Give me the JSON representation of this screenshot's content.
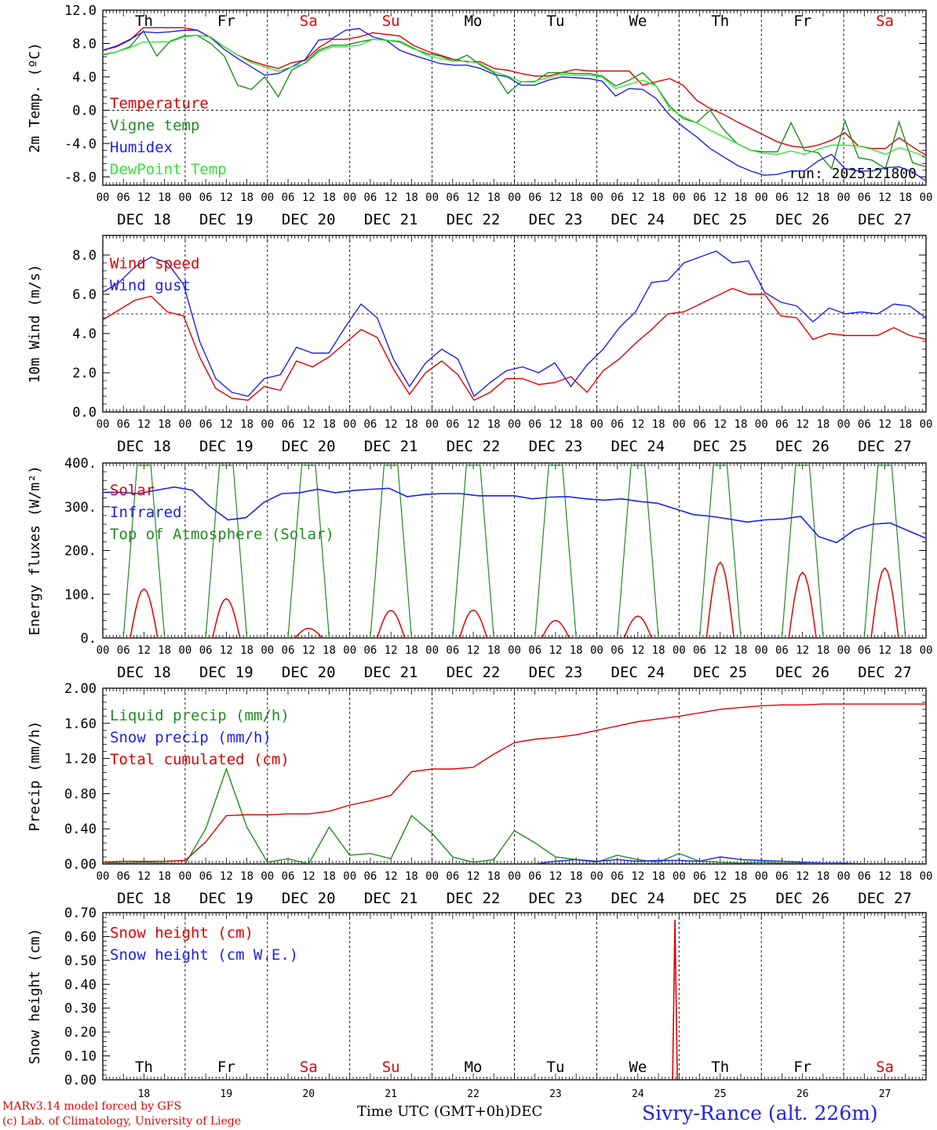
{
  "footer": {
    "model": "MARv3.14 model forced by GFS",
    "copyright": "(c) Lab. of Climatology, University of Liege",
    "time_label": "Time UTC (GMT+0h)",
    "month_label": "DEC",
    "station": "Sivry-Rance (alt. 226m)"
  },
  "weekdays": [
    {
      "label": "Th",
      "color": "#000000"
    },
    {
      "label": "Fr",
      "color": "#000000"
    },
    {
      "label": "Sa",
      "color": "#e00000"
    },
    {
      "label": "Su",
      "color": "#e00000"
    },
    {
      "label": "Mo",
      "color": "#000000"
    },
    {
      "label": "Tu",
      "color": "#000000"
    },
    {
      "label": "We",
      "color": "#000000"
    },
    {
      "label": "Th",
      "color": "#000000"
    },
    {
      "label": "Fr",
      "color": "#000000"
    },
    {
      "label": "Sa",
      "color": "#e00000"
    }
  ],
  "date_labels": [
    "DEC 18",
    "DEC 19",
    "DEC 20",
    "DEC 21",
    "DEC 22",
    "DEC 23",
    "DEC 24",
    "DEC 25",
    "DEC 26",
    "DEC 27"
  ],
  "day_numbers": [
    "18",
    "19",
    "20",
    "21",
    "22",
    "23",
    "24",
    "25",
    "26",
    "27"
  ],
  "hour_ticks": [
    "00",
    "06",
    "12",
    "18"
  ],
  "chart_data": [
    {
      "id": "temp",
      "type": "line",
      "ylabel": "2m Temp. (ºC)",
      "ylim": [
        -9.0,
        12.0
      ],
      "yticks": [
        "12.0",
        "8.0",
        "4.0",
        "0.0",
        "-4.0",
        "-8.0"
      ],
      "ytick_values": [
        12,
        8,
        4,
        0,
        -4,
        -8
      ],
      "ref_line": 0,
      "annotation": "run: 2025121800",
      "x_hours_step": 6,
      "series": [
        {
          "name": "Temperature",
          "color": "#e00000",
          "values": [
            7.2,
            7.6,
            8.4,
            9.9,
            9.9,
            9.9,
            9.9,
            9.6,
            8.7,
            7.6,
            6.6,
            5.9,
            5.4,
            5.0,
            5.7,
            6.0,
            7.5,
            8.5,
            8.5,
            8.8,
            9.3,
            9.1,
            8.9,
            7.8,
            7.1,
            6.6,
            6.1,
            5.8,
            5.8,
            5.0,
            4.8,
            4.4,
            4.1,
            4.1,
            4.5,
            4.9,
            4.7,
            4.7,
            4.7,
            4.7,
            3.0,
            3.4,
            3.8,
            3.0,
            1.2,
            0.2,
            -0.5,
            -1.4,
            -2.2,
            -3.0,
            -3.8,
            -4.3,
            -4.5,
            -4.2,
            -3.6,
            -2.7,
            -4.3,
            -4.6,
            -4.6,
            -3.3,
            -4.4,
            -5.4
          ]
        },
        {
          "name": "Vigne temp",
          "color": "#228b22",
          "values": [
            6.6,
            7.0,
            7.6,
            9.5,
            6.5,
            8.3,
            8.9,
            9.0,
            8.0,
            6.5,
            3.0,
            2.5,
            4.0,
            1.6,
            4.8,
            5.7,
            7.2,
            7.8,
            7.8,
            8.2,
            8.5,
            8.4,
            8.2,
            7.4,
            6.8,
            6.5,
            5.9,
            6.6,
            5.4,
            4.5,
            2.0,
            3.4,
            3.4,
            4.5,
            4.5,
            4.4,
            4.4,
            4.1,
            2.9,
            3.6,
            4.5,
            2.9,
            0.5,
            -1.0,
            -1.5,
            -0.0,
            -2.3,
            -4.0,
            -4.8,
            -5.0,
            -5.0,
            -1.5,
            -4.8,
            -5.1,
            -7.0,
            -1.3,
            -5.7,
            -6.0,
            -7.0,
            -1.4,
            -6.3,
            -6.8
          ]
        },
        {
          "name": "Humidex",
          "color": "#1e22e6",
          "values": [
            7.2,
            7.7,
            8.5,
            9.4,
            9.3,
            9.4,
            9.6,
            9.6,
            8.7,
            7.3,
            6.2,
            5.2,
            4.2,
            4.4,
            5.2,
            6.1,
            8.4,
            8.6,
            9.6,
            9.8,
            8.8,
            8.4,
            7.2,
            6.6,
            6.1,
            5.6,
            5.4,
            5.4,
            5.0,
            4.3,
            4.0,
            3.0,
            3.0,
            3.6,
            4.0,
            3.9,
            3.8,
            3.5,
            1.7,
            2.6,
            2.5,
            1.4,
            -0.6,
            -2.0,
            -3.2,
            -4.6,
            -5.6,
            -6.6,
            -7.3,
            -7.8,
            -7.7,
            -7.3,
            -7.3,
            -6.1,
            -5.3,
            -7.0,
            -7.3,
            -7.3,
            -6.9,
            -6.8,
            -7.4,
            -8.5
          ]
        },
        {
          "name": "DewPoint Temp",
          "color": "#33e633",
          "values": [
            6.7,
            7.0,
            7.5,
            8.2,
            8.2,
            8.2,
            8.8,
            9.0,
            8.8,
            7.6,
            6.6,
            5.7,
            5.2,
            4.7,
            5.2,
            5.6,
            7.0,
            7.6,
            7.6,
            7.8,
            8.5,
            8.4,
            8.3,
            7.5,
            6.6,
            6.2,
            5.9,
            5.9,
            5.6,
            4.6,
            4.1,
            3.4,
            3.5,
            3.9,
            4.3,
            4.2,
            4.2,
            4.0,
            2.6,
            3.1,
            3.6,
            2.9,
            0.2,
            -0.8,
            -1.5,
            -2.4,
            -3.2,
            -4.0,
            -4.8,
            -5.2,
            -5.3,
            -4.9,
            -5.3,
            -4.7,
            -4.2,
            -4.2,
            -4.3,
            -4.7,
            -5.3,
            -4.5,
            -5.0,
            -5.6
          ]
        }
      ]
    },
    {
      "id": "wind",
      "type": "line",
      "ylabel": "10m Wind (m/s)",
      "ylim": [
        0.0,
        9.0
      ],
      "yticks": [
        "8.0",
        "6.0",
        "4.0",
        "2.0",
        "0.0"
      ],
      "ytick_values": [
        8,
        6,
        4,
        2,
        0
      ],
      "ref_line": 5,
      "x_hours_step": 6,
      "series": [
        {
          "name": "Wind speed",
          "color": "#e00000",
          "values": [
            4.7,
            5.2,
            5.7,
            5.9,
            5.1,
            4.9,
            2.8,
            1.2,
            0.7,
            0.6,
            1.3,
            1.1,
            2.6,
            2.3,
            2.8,
            3.5,
            4.2,
            3.8,
            2.2,
            0.9,
            2.0,
            2.6,
            1.9,
            0.6,
            1.0,
            1.7,
            1.7,
            1.4,
            1.5,
            1.8,
            1.0,
            2.1,
            2.7,
            3.5,
            4.2,
            5.0,
            5.1,
            5.5,
            5.9,
            6.3,
            6.0,
            6.0,
            4.9,
            4.8,
            3.7,
            4.0,
            3.9,
            3.9,
            3.9,
            4.3,
            3.9,
            3.7
          ]
        },
        {
          "name": "Wind gust",
          "color": "#1e22e6",
          "values": [
            6.1,
            6.6,
            7.4,
            7.9,
            7.6,
            6.5,
            3.6,
            1.7,
            1.0,
            0.8,
            1.7,
            1.9,
            3.3,
            3.0,
            3.0,
            4.3,
            5.5,
            4.8,
            2.7,
            1.3,
            2.5,
            3.2,
            2.7,
            0.8,
            1.5,
            2.1,
            2.3,
            2.0,
            2.5,
            1.3,
            2.4,
            3.2,
            4.3,
            5.1,
            6.6,
            6.7,
            7.6,
            7.9,
            8.2,
            7.6,
            7.7,
            6.1,
            5.6,
            5.4,
            4.6,
            5.3,
            5.0,
            5.1,
            5.0,
            5.5,
            5.4,
            4.8
          ]
        }
      ]
    },
    {
      "id": "energy",
      "type": "line",
      "ylabel": "Energy fluxes (W/m²)",
      "ylim": [
        0,
        400
      ],
      "yticks": [
        "400.",
        "300.",
        "200.",
        "100.",
        "0."
      ],
      "ytick_values": [
        400,
        300,
        200,
        100,
        0
      ],
      "x_hours_step": 6,
      "day_peaks": {
        "solar": [
          112,
          90,
          22,
          63,
          64,
          40,
          50,
          173,
          150,
          160
        ],
        "toa": [
          395,
          395,
          395,
          395,
          395,
          395,
          395,
          395,
          395,
          395
        ]
      },
      "series": [
        {
          "name": "Solar",
          "color": "#e00000",
          "values": []
        },
        {
          "name": "Infrared",
          "color": "#1e22e6",
          "values": [
            333,
            333,
            330,
            338,
            345,
            338,
            300,
            270,
            275,
            310,
            330,
            332,
            340,
            332,
            337,
            340,
            342,
            323,
            328,
            330,
            330,
            325,
            325,
            325,
            318,
            322,
            323,
            318,
            315,
            318,
            312,
            308,
            295,
            282,
            278,
            272,
            265,
            270,
            272,
            278,
            232,
            218,
            247,
            260,
            263,
            245,
            228
          ]
        },
        {
          "name": "Top of Atmosphere (Solar)",
          "color": "#228b22",
          "values": []
        }
      ]
    },
    {
      "id": "precip",
      "type": "line",
      "ylabel": "Precip (mm/h)",
      "ylim": [
        0.0,
        2.0
      ],
      "yticks": [
        "2.00",
        "1.60",
        "1.20",
        "0.80",
        "0.40",
        "0.00"
      ],
      "ytick_values": [
        2,
        1.6,
        1.2,
        0.8,
        0.4,
        0
      ],
      "x_hours_step": 6,
      "series": [
        {
          "name": "Liquid precip (mm/h)",
          "color": "#228b22",
          "values": [
            0.02,
            0.01,
            0.02,
            0.01,
            0.0,
            0.4,
            1.08,
            0.42,
            0.02,
            0.06,
            0.0,
            0.42,
            0.1,
            0.12,
            0.06,
            0.55,
            0.35,
            0.08,
            0.02,
            0.05,
            0.38,
            0.24,
            0.08,
            0.05,
            0.02,
            0.1,
            0.05,
            0.02,
            0.12,
            0.03,
            0.02,
            0.01,
            0.02,
            0.01,
            0.01,
            0.0,
            0.01,
            0.0,
            0.0,
            0.0,
            0.0
          ]
        },
        {
          "name": "Snow precip (mm/h)",
          "color": "#1e22e6",
          "values": [
            0.0,
            0.0,
            0.0,
            0.0,
            0.0,
            0.0,
            0.0,
            0.0,
            0.0,
            0.0,
            0.0,
            0.0,
            0.0,
            0.0,
            0.0,
            0.0,
            0.0,
            0.0,
            0.0,
            0.0,
            0.0,
            0.0,
            0.03,
            0.05,
            0.03,
            0.05,
            0.03,
            0.04,
            0.04,
            0.03,
            0.08,
            0.05,
            0.04,
            0.03,
            0.02,
            0.01,
            0.01,
            0.0,
            0.0,
            0.0,
            0.0
          ]
        },
        {
          "name": "Total cumulated (cm)",
          "color": "#e00000",
          "values": [
            0.02,
            0.03,
            0.03,
            0.03,
            0.04,
            0.25,
            0.55,
            0.56,
            0.56,
            0.57,
            0.57,
            0.6,
            0.67,
            0.72,
            0.78,
            1.05,
            1.08,
            1.08,
            1.1,
            1.25,
            1.38,
            1.42,
            1.44,
            1.47,
            1.52,
            1.57,
            1.62,
            1.65,
            1.68,
            1.72,
            1.76,
            1.78,
            1.8,
            1.81,
            1.81,
            1.82,
            1.82,
            1.82,
            1.82,
            1.82,
            1.82
          ]
        }
      ]
    },
    {
      "id": "snow",
      "type": "line",
      "ylabel": "Snow height (cm)",
      "ylim": [
        0.0,
        0.7
      ],
      "yticks": [
        "0.70",
        "0.60",
        "0.50",
        "0.40",
        "0.30",
        "0.20",
        "0.10",
        "0.00"
      ],
      "ytick_values": [
        0.7,
        0.6,
        0.5,
        0.4,
        0.3,
        0.2,
        0.1,
        0.0
      ],
      "x_hours_step": 6,
      "spike": {
        "day": 6.95,
        "value": 0.67
      },
      "series": [
        {
          "name": "Snow height (cm)",
          "color": "#e00000",
          "values": []
        },
        {
          "name": "Snow height (cm W.E.)",
          "color": "#1e22e6",
          "values": []
        }
      ]
    }
  ]
}
